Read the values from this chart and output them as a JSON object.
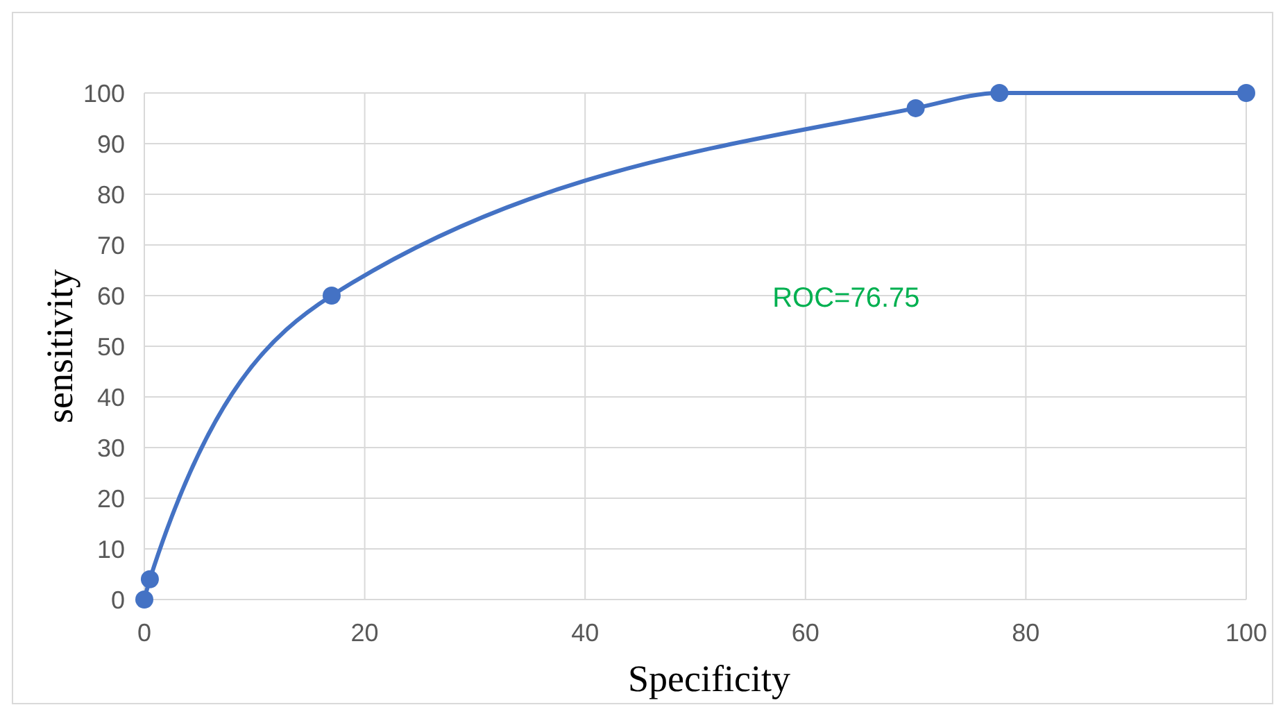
{
  "chart_data": {
    "type": "line",
    "xlabel": "Specificity",
    "ylabel": "sensitivity",
    "x": [
      0,
      0.5,
      17,
      70,
      77.6,
      100
    ],
    "series": [
      {
        "color": "#4472c4",
        "values": [
          0,
          4,
          60,
          97,
          100,
          100
        ]
      }
    ],
    "xlim": [
      0,
      100
    ],
    "xticks": [
      0,
      20,
      40,
      60,
      80,
      100
    ],
    "ylim": [
      0,
      100
    ],
    "yticks": [
      0,
      10,
      20,
      30,
      40,
      50,
      60,
      70,
      80,
      90,
      100
    ],
    "grid": true,
    "marker": "circle",
    "line_style": "solid",
    "annotations": [
      "ROC=76.75"
    ]
  }
}
